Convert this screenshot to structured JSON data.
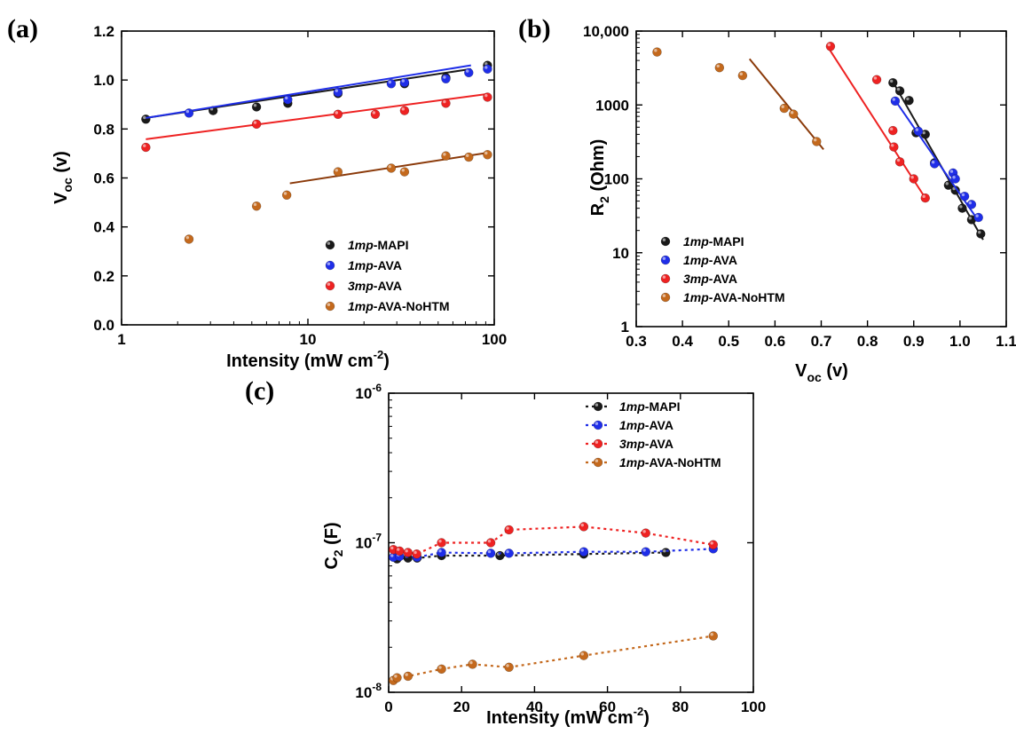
{
  "colors": {
    "1mp-MAPI": "#1a1a1a",
    "1mp-AVA": "#1f2ee8",
    "3mp-AVA": "#ee2222",
    "1mp-AVA-NoHTM": "#c4691d",
    "fit_1mp-AVA-NoHTM": "#8b3a0a"
  },
  "legend": [
    {
      "key": "1mp-MAPI",
      "prefix": "1mp",
      "suffix": "-MAPI"
    },
    {
      "key": "1mp-AVA",
      "prefix": "1mp",
      "suffix": "-AVA"
    },
    {
      "key": "3mp-AVA",
      "prefix": "3mp",
      "suffix": "-AVA"
    },
    {
      "key": "1mp-AVA-NoHTM",
      "prefix": "1mp",
      "suffix": "-AVA-NoHTM"
    }
  ],
  "chart_data": [
    {
      "panel": "(a)",
      "type": "scatter",
      "xscale": "log",
      "xlim": [
        1,
        100
      ],
      "ylim": [
        0.0,
        1.2
      ],
      "xticks": [
        "1",
        "10",
        "100"
      ],
      "yticks": [
        "0.0",
        "0.2",
        "0.4",
        "0.6",
        "0.8",
        "1.0",
        "1.2"
      ],
      "xlabel": {
        "main": "Intensity (mW cm",
        "sup": "-2",
        "end": ")"
      },
      "ylabel": {
        "main": "V",
        "sub": "oc",
        "end": " (v)"
      },
      "series": [
        {
          "name": "1mp-MAPI",
          "x": [
            1.35,
            3.1,
            5.3,
            7.8,
            14.5,
            33,
            55,
            92
          ],
          "y": [
            0.84,
            0.875,
            0.89,
            0.905,
            0.945,
            0.985,
            1.01,
            1.06
          ],
          "fit": {
            "x": [
              1.35,
              75
            ],
            "y": [
              0.845,
              1.045
            ]
          }
        },
        {
          "name": "1mp-AVA",
          "x": [
            2.3,
            7.8,
            14.5,
            28,
            33,
            55,
            73,
            92
          ],
          "y": [
            0.865,
            0.92,
            0.95,
            0.985,
            0.99,
            1.005,
            1.03,
            1.045
          ],
          "fit": {
            "x": [
              1.35,
              75
            ],
            "y": [
              0.845,
              1.06
            ]
          }
        },
        {
          "name": "3mp-AVA",
          "x": [
            1.35,
            5.3,
            14.5,
            23,
            33,
            55,
            92
          ],
          "y": [
            0.725,
            0.82,
            0.86,
            0.86,
            0.875,
            0.905,
            0.93
          ],
          "fit": {
            "x": [
              1.35,
              92
            ],
            "y": [
              0.758,
              0.943
            ]
          }
        },
        {
          "name": "1mp-AVA-NoHTM",
          "x": [
            2.3,
            5.3,
            7.7,
            14.5,
            28,
            33,
            55,
            73,
            92
          ],
          "y": [
            0.35,
            0.485,
            0.53,
            0.625,
            0.64,
            0.625,
            0.69,
            0.685,
            0.695
          ],
          "fit": {
            "x": [
              8,
              92
            ],
            "y": [
              0.578,
              0.703
            ]
          }
        }
      ],
      "legend_position": "lower-right"
    },
    {
      "panel": "(b)",
      "type": "scatter",
      "yscale": "log",
      "xlim": [
        0.3,
        1.1
      ],
      "ylim": [
        1,
        10000
      ],
      "xticks": [
        "0.3",
        "0.4",
        "0.5",
        "0.6",
        "0.7",
        "0.8",
        "0.9",
        "1.0",
        "1.1"
      ],
      "yticks": [
        "1",
        "10",
        "100",
        "1000",
        "10,000"
      ],
      "xlabel": {
        "main": "V",
        "sub": "oc",
        "end": " (v)"
      },
      "ylabel": {
        "main": "R",
        "sub": "2",
        "end": " (Ohm)"
      },
      "series": [
        {
          "name": "1mp-MAPI",
          "x": [
            0.855,
            0.87,
            0.89,
            0.905,
            0.925,
            0.945,
            0.975,
            0.99,
            1.005,
            1.025,
            1.045
          ],
          "y": [
            2000,
            1550,
            1150,
            420,
            400,
            165,
            82,
            70,
            40,
            28,
            18
          ],
          "fit": {
            "x": [
              0.855,
              1.05
            ],
            "y": [
              2050,
              15
            ]
          }
        },
        {
          "name": "1mp-AVA",
          "x": [
            0.86,
            0.91,
            0.945,
            0.985,
            0.99,
            1.01,
            1.025,
            1.04
          ],
          "y": [
            1130,
            440,
            160,
            120,
            100,
            58,
            45,
            30
          ],
          "fit": {
            "x": [
              0.86,
              1.04
            ],
            "y": [
              1150,
              27
            ]
          }
        },
        {
          "name": "3mp-AVA",
          "x": [
            0.72,
            0.82,
            0.855,
            0.857,
            0.87,
            0.9,
            0.925
          ],
          "y": [
            6200,
            2200,
            450,
            270,
            170,
            100,
            55
          ],
          "fit": {
            "x": [
              0.715,
              0.925
            ],
            "y": [
              6000,
              55
            ]
          }
        },
        {
          "name": "1mp-AVA-NoHTM",
          "x": [
            0.345,
            0.48,
            0.53,
            0.62,
            0.64,
            0.69
          ],
          "y": [
            5200,
            3200,
            2500,
            900,
            750,
            320
          ],
          "fit": {
            "x": [
              0.545,
              0.705
            ],
            "y": [
              4200,
              250
            ]
          }
        }
      ],
      "legend_position": "lower-left"
    },
    {
      "panel": "(c)",
      "type": "line",
      "yscale": "log",
      "xlim": [
        0,
        100
      ],
      "ylim": [
        1e-08,
        1e-06
      ],
      "xticks": [
        "0",
        "20",
        "40",
        "60",
        "80",
        "100"
      ],
      "yticks": [
        {
          "base": "10",
          "exp": "-8"
        },
        {
          "base": "10",
          "exp": "-7"
        },
        {
          "base": "10",
          "exp": "-6"
        }
      ],
      "xlabel": {
        "main": "Intensity (mW cm",
        "sup": "-2",
        "end": ")"
      },
      "ylabel": {
        "main": "C",
        "sub": "2",
        "end": " (F)"
      },
      "series": [
        {
          "name": "1mp-MAPI",
          "x": [
            2.3,
            5.3,
            7.8,
            14.5,
            30.5,
            53.5,
            76
          ],
          "y": [
            7.8e-08,
            7.9e-08,
            7.9e-08,
            8.2e-08,
            8.2e-08,
            8.4e-08,
            8.6e-08
          ]
        },
        {
          "name": "1mp-AVA",
          "x": [
            1.3,
            3.0,
            7.8,
            14.5,
            28,
            33,
            53.5,
            70.5,
            89
          ],
          "y": [
            8e-08,
            8.1e-08,
            8e-08,
            8.6e-08,
            8.5e-08,
            8.5e-08,
            8.7e-08,
            8.7e-08,
            9.1e-08
          ]
        },
        {
          "name": "3mp-AVA",
          "x": [
            1.3,
            3.0,
            5.3,
            7.7,
            14.5,
            28,
            33,
            53.5,
            70.5,
            89
          ],
          "y": [
            9e-08,
            8.8e-08,
            8.6e-08,
            8.4e-08,
            1e-07,
            1e-07,
            1.22e-07,
            1.28e-07,
            1.16e-07,
            9.7e-08
          ]
        },
        {
          "name": "1mp-AVA-NoHTM",
          "x": [
            1.3,
            2.3,
            5.3,
            14.5,
            23,
            33,
            53.5,
            89
          ],
          "y": [
            1.2e-08,
            1.25e-08,
            1.28e-08,
            1.43e-08,
            1.54e-08,
            1.47e-08,
            1.76e-08,
            2.38e-08
          ]
        }
      ],
      "legend_position": "top-right"
    }
  ]
}
